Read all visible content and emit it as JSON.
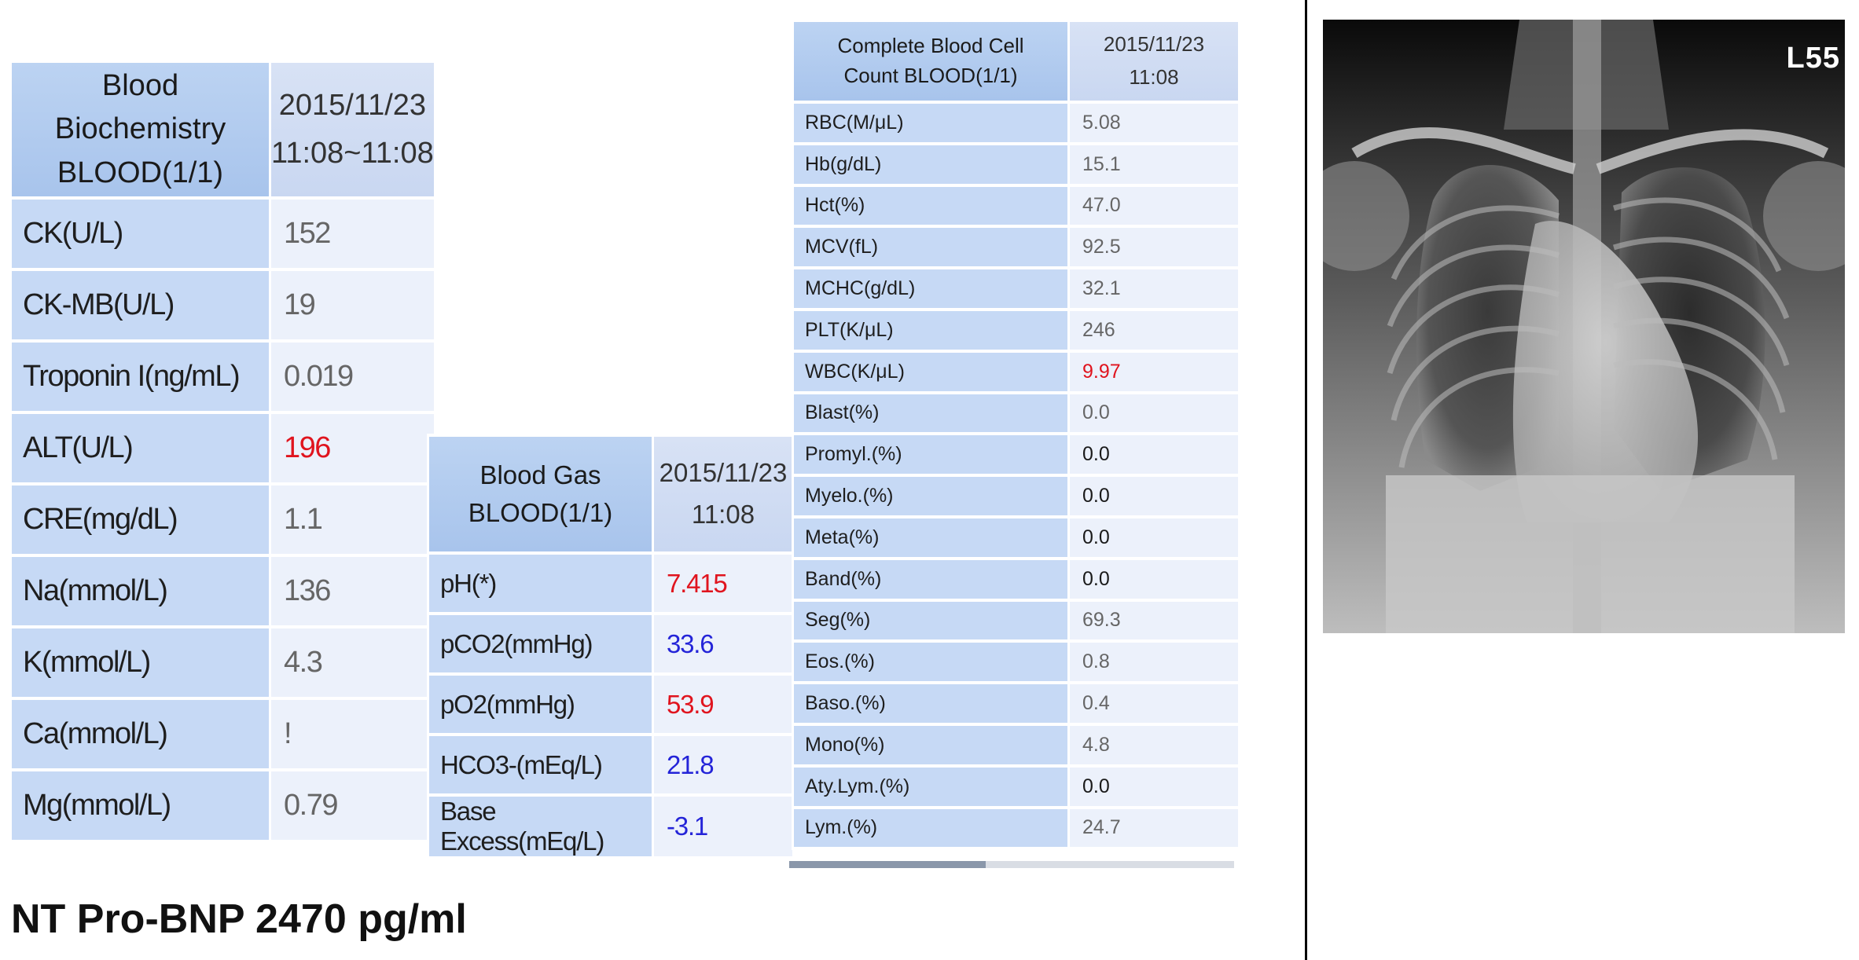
{
  "biochemistry": {
    "header_title": "Blood Biochemistry BLOOD(1/1)",
    "header_date": "2015/11/23",
    "header_time": "11:08~11:08",
    "rows": [
      {
        "label": "CK(U/L)",
        "value": "152",
        "flag": ""
      },
      {
        "label": "CK-MB(U/L)",
        "value": "19",
        "flag": ""
      },
      {
        "label": "Troponin I(ng/mL)",
        "value": "0.019",
        "flag": ""
      },
      {
        "label": "ALT(U/L)",
        "value": "196",
        "flag": "red"
      },
      {
        "label": "CRE(mg/dL)",
        "value": "1.1",
        "flag": ""
      },
      {
        "label": "Na(mmol/L)",
        "value": "136",
        "flag": ""
      },
      {
        "label": "K(mmol/L)",
        "value": "4.3",
        "flag": ""
      },
      {
        "label": "Ca(mmol/L)",
        "value": "!",
        "flag": ""
      },
      {
        "label": "Mg(mmol/L)",
        "value": "0.79",
        "flag": ""
      }
    ]
  },
  "blood_gas": {
    "header_title": "Blood Gas BLOOD(1/1)",
    "header_date": "2015/11/23",
    "header_time": "11:08",
    "rows": [
      {
        "label": "pH(*)",
        "value": "7.415",
        "flag": "red"
      },
      {
        "label": "pCO2(mmHg)",
        "value": "33.6",
        "flag": "blue"
      },
      {
        "label": "pO2(mmHg)",
        "value": "53.9",
        "flag": "red"
      },
      {
        "label": "HCO3-(mEq/L)",
        "value": "21.8",
        "flag": "blue"
      },
      {
        "label": "Base Excess(mEq/L)",
        "value": "-3.1",
        "flag": "blue"
      }
    ]
  },
  "cbc": {
    "header_title": "Complete Blood Cell Count BLOOD(1/1)",
    "header_date": "2015/11/23",
    "header_time": "11:08",
    "rows": [
      {
        "label": "RBC(M/μL)",
        "value": "5.08",
        "flag": ""
      },
      {
        "label": "Hb(g/dL)",
        "value": "15.1",
        "flag": ""
      },
      {
        "label": "Hct(%)",
        "value": "47.0",
        "flag": ""
      },
      {
        "label": "MCV(fL)",
        "value": "92.5",
        "flag": ""
      },
      {
        "label": "MCHC(g/dL)",
        "value": "32.1",
        "flag": ""
      },
      {
        "label": "PLT(K/μL)",
        "value": "246",
        "flag": ""
      },
      {
        "label": "WBC(K/μL)",
        "value": "9.97",
        "flag": "red"
      },
      {
        "label": "Blast(%)",
        "value": "0.0",
        "flag": ""
      },
      {
        "label": "Promyl.(%)",
        "value": "0.0",
        "flag": "dark"
      },
      {
        "label": "Myelo.(%)",
        "value": "0.0",
        "flag": "dark"
      },
      {
        "label": "Meta(%)",
        "value": "0.0",
        "flag": "dark"
      },
      {
        "label": "Band(%)",
        "value": "0.0",
        "flag": "dark"
      },
      {
        "label": "Seg(%)",
        "value": "69.3",
        "flag": ""
      },
      {
        "label": "Eos.(%)",
        "value": "0.8",
        "flag": ""
      },
      {
        "label": "Baso.(%)",
        "value": "0.4",
        "flag": ""
      },
      {
        "label": "Mono(%)",
        "value": "4.8",
        "flag": ""
      },
      {
        "label": "Aty.Lym.(%)",
        "value": "0.0",
        "flag": "dark"
      },
      {
        "label": "Lym.(%)",
        "value": "24.7",
        "flag": ""
      }
    ]
  },
  "footer_note": "NT Pro-BNP 2470 pg/ml",
  "xray": {
    "marker": "L55"
  }
}
